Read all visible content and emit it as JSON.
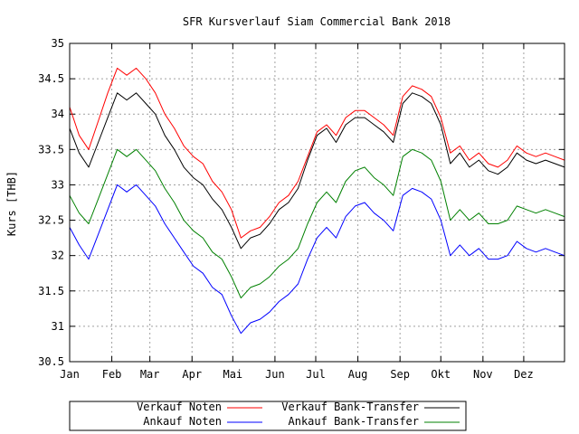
{
  "chart_data": {
    "type": "line",
    "title": "SFR Kursverlauf Siam Commercial Bank 2018",
    "xlabel": "",
    "ylabel": "Kurs [THB]",
    "ylim": [
      30.5,
      35
    ],
    "xlim": [
      "2018-01-01",
      "2018-12-31"
    ],
    "grid": true,
    "legend_position": "bottom",
    "x_ticks": [
      {
        "label": "Jan",
        "date": "2018-01-01"
      },
      {
        "label": "Feb",
        "date": "2018-02-01"
      },
      {
        "label": "Mar",
        "date": "2018-03-01"
      },
      {
        "label": "Apr",
        "date": "2018-04-01"
      },
      {
        "label": "Mai",
        "date": "2018-05-01"
      },
      {
        "label": "Jun",
        "date": "2018-06-01"
      },
      {
        "label": "Jul",
        "date": "2018-07-01"
      },
      {
        "label": "Aug",
        "date": "2018-08-01"
      },
      {
        "label": "Sep",
        "date": "2018-09-01"
      },
      {
        "label": "Okt",
        "date": "2018-10-01"
      },
      {
        "label": "Nov",
        "date": "2018-11-01"
      },
      {
        "label": "Dez",
        "date": "2018-12-01"
      }
    ],
    "y_ticks": [
      "30.5",
      "31",
      "31.5",
      "32",
      "32.5",
      "33",
      "33.5",
      "34",
      "34.5",
      "35"
    ],
    "series": [
      {
        "name": "Verkauf Noten",
        "color": "#ff0000",
        "points": [
          [
            "2018-01-01",
            34.1
          ],
          [
            "2018-01-08",
            33.7
          ],
          [
            "2018-01-15",
            33.5
          ],
          [
            "2018-01-22",
            33.9
          ],
          [
            "2018-01-29",
            34.3
          ],
          [
            "2018-02-05",
            34.65
          ],
          [
            "2018-02-12",
            34.55
          ],
          [
            "2018-02-19",
            34.65
          ],
          [
            "2018-02-26",
            34.5
          ],
          [
            "2018-03-05",
            34.3
          ],
          [
            "2018-03-12",
            34.0
          ],
          [
            "2018-03-19",
            33.8
          ],
          [
            "2018-03-26",
            33.55
          ],
          [
            "2018-04-02",
            33.4
          ],
          [
            "2018-04-09",
            33.3
          ],
          [
            "2018-04-16",
            33.05
          ],
          [
            "2018-04-23",
            32.9
          ],
          [
            "2018-04-30",
            32.65
          ],
          [
            "2018-05-07",
            32.25
          ],
          [
            "2018-05-14",
            32.35
          ],
          [
            "2018-05-21",
            32.4
          ],
          [
            "2018-05-28",
            32.55
          ],
          [
            "2018-06-04",
            32.75
          ],
          [
            "2018-06-11",
            32.85
          ],
          [
            "2018-06-18",
            33.05
          ],
          [
            "2018-06-25",
            33.4
          ],
          [
            "2018-07-02",
            33.75
          ],
          [
            "2018-07-09",
            33.85
          ],
          [
            "2018-07-16",
            33.7
          ],
          [
            "2018-07-23",
            33.95
          ],
          [
            "2018-07-30",
            34.05
          ],
          [
            "2018-08-06",
            34.05
          ],
          [
            "2018-08-13",
            33.95
          ],
          [
            "2018-08-20",
            33.85
          ],
          [
            "2018-08-27",
            33.7
          ],
          [
            "2018-09-03",
            34.25
          ],
          [
            "2018-09-10",
            34.4
          ],
          [
            "2018-09-17",
            34.35
          ],
          [
            "2018-09-24",
            34.25
          ],
          [
            "2018-10-01",
            33.95
          ],
          [
            "2018-10-08",
            33.45
          ],
          [
            "2018-10-15",
            33.55
          ],
          [
            "2018-10-22",
            33.35
          ],
          [
            "2018-10-29",
            33.45
          ],
          [
            "2018-11-05",
            33.3
          ],
          [
            "2018-11-12",
            33.25
          ],
          [
            "2018-11-19",
            33.35
          ],
          [
            "2018-11-26",
            33.55
          ],
          [
            "2018-12-03",
            33.45
          ],
          [
            "2018-12-10",
            33.4
          ],
          [
            "2018-12-17",
            33.45
          ],
          [
            "2018-12-24",
            33.4
          ],
          [
            "2018-12-31",
            33.35
          ]
        ]
      },
      {
        "name": "Verkauf Bank-Transfer",
        "color": "#000000",
        "points": [
          [
            "2018-01-01",
            33.8
          ],
          [
            "2018-01-08",
            33.45
          ],
          [
            "2018-01-15",
            33.25
          ],
          [
            "2018-01-22",
            33.6
          ],
          [
            "2018-01-29",
            33.95
          ],
          [
            "2018-02-05",
            34.3
          ],
          [
            "2018-02-12",
            34.2
          ],
          [
            "2018-02-19",
            34.3
          ],
          [
            "2018-02-26",
            34.15
          ],
          [
            "2018-03-05",
            34.0
          ],
          [
            "2018-03-12",
            33.7
          ],
          [
            "2018-03-19",
            33.5
          ],
          [
            "2018-03-26",
            33.25
          ],
          [
            "2018-04-02",
            33.1
          ],
          [
            "2018-04-09",
            33.0
          ],
          [
            "2018-04-16",
            32.8
          ],
          [
            "2018-04-23",
            32.65
          ],
          [
            "2018-04-30",
            32.4
          ],
          [
            "2018-05-07",
            32.1
          ],
          [
            "2018-05-14",
            32.25
          ],
          [
            "2018-05-21",
            32.3
          ],
          [
            "2018-05-28",
            32.45
          ],
          [
            "2018-06-04",
            32.65
          ],
          [
            "2018-06-11",
            32.75
          ],
          [
            "2018-06-18",
            32.95
          ],
          [
            "2018-06-25",
            33.35
          ],
          [
            "2018-07-02",
            33.7
          ],
          [
            "2018-07-09",
            33.8
          ],
          [
            "2018-07-16",
            33.6
          ],
          [
            "2018-07-23",
            33.85
          ],
          [
            "2018-07-30",
            33.95
          ],
          [
            "2018-08-06",
            33.95
          ],
          [
            "2018-08-13",
            33.85
          ],
          [
            "2018-08-20",
            33.75
          ],
          [
            "2018-08-27",
            33.6
          ],
          [
            "2018-09-03",
            34.15
          ],
          [
            "2018-09-10",
            34.3
          ],
          [
            "2018-09-17",
            34.25
          ],
          [
            "2018-09-24",
            34.15
          ],
          [
            "2018-10-01",
            33.85
          ],
          [
            "2018-10-08",
            33.3
          ],
          [
            "2018-10-15",
            33.45
          ],
          [
            "2018-10-22",
            33.25
          ],
          [
            "2018-10-29",
            33.35
          ],
          [
            "2018-11-05",
            33.2
          ],
          [
            "2018-11-12",
            33.15
          ],
          [
            "2018-11-19",
            33.25
          ],
          [
            "2018-11-26",
            33.45
          ],
          [
            "2018-12-03",
            33.35
          ],
          [
            "2018-12-10",
            33.3
          ],
          [
            "2018-12-17",
            33.35
          ],
          [
            "2018-12-24",
            33.3
          ],
          [
            "2018-12-31",
            33.25
          ]
        ]
      },
      {
        "name": "Ankauf Noten",
        "color": "#0000ff",
        "points": [
          [
            "2018-01-01",
            32.4
          ],
          [
            "2018-01-08",
            32.15
          ],
          [
            "2018-01-15",
            31.95
          ],
          [
            "2018-01-22",
            32.3
          ],
          [
            "2018-01-29",
            32.65
          ],
          [
            "2018-02-05",
            33.0
          ],
          [
            "2018-02-12",
            32.9
          ],
          [
            "2018-02-19",
            33.0
          ],
          [
            "2018-02-26",
            32.85
          ],
          [
            "2018-03-05",
            32.7
          ],
          [
            "2018-03-12",
            32.45
          ],
          [
            "2018-03-19",
            32.25
          ],
          [
            "2018-03-26",
            32.05
          ],
          [
            "2018-04-02",
            31.85
          ],
          [
            "2018-04-09",
            31.75
          ],
          [
            "2018-04-16",
            31.55
          ],
          [
            "2018-04-23",
            31.45
          ],
          [
            "2018-04-30",
            31.15
          ],
          [
            "2018-05-07",
            30.9
          ],
          [
            "2018-05-14",
            31.05
          ],
          [
            "2018-05-21",
            31.1
          ],
          [
            "2018-05-28",
            31.2
          ],
          [
            "2018-06-04",
            31.35
          ],
          [
            "2018-06-11",
            31.45
          ],
          [
            "2018-06-18",
            31.6
          ],
          [
            "2018-06-25",
            31.95
          ],
          [
            "2018-07-02",
            32.25
          ],
          [
            "2018-07-09",
            32.4
          ],
          [
            "2018-07-16",
            32.25
          ],
          [
            "2018-07-23",
            32.55
          ],
          [
            "2018-07-30",
            32.7
          ],
          [
            "2018-08-06",
            32.75
          ],
          [
            "2018-08-13",
            32.6
          ],
          [
            "2018-08-20",
            32.5
          ],
          [
            "2018-08-27",
            32.35
          ],
          [
            "2018-09-03",
            32.85
          ],
          [
            "2018-09-10",
            32.95
          ],
          [
            "2018-09-17",
            32.9
          ],
          [
            "2018-09-24",
            32.8
          ],
          [
            "2018-10-01",
            32.5
          ],
          [
            "2018-10-08",
            32.0
          ],
          [
            "2018-10-15",
            32.15
          ],
          [
            "2018-10-22",
            32.0
          ],
          [
            "2018-10-29",
            32.1
          ],
          [
            "2018-11-05",
            31.95
          ],
          [
            "2018-11-12",
            31.95
          ],
          [
            "2018-11-19",
            32.0
          ],
          [
            "2018-11-26",
            32.2
          ],
          [
            "2018-12-03",
            32.1
          ],
          [
            "2018-12-10",
            32.05
          ],
          [
            "2018-12-17",
            32.1
          ],
          [
            "2018-12-24",
            32.05
          ],
          [
            "2018-12-31",
            32.0
          ]
        ]
      },
      {
        "name": "Ankauf Bank-Transfer",
        "color": "#008000",
        "points": [
          [
            "2018-01-01",
            32.85
          ],
          [
            "2018-01-08",
            32.6
          ],
          [
            "2018-01-15",
            32.45
          ],
          [
            "2018-01-22",
            32.8
          ],
          [
            "2018-01-29",
            33.15
          ],
          [
            "2018-02-05",
            33.5
          ],
          [
            "2018-02-12",
            33.4
          ],
          [
            "2018-02-19",
            33.5
          ],
          [
            "2018-02-26",
            33.35
          ],
          [
            "2018-03-05",
            33.2
          ],
          [
            "2018-03-12",
            32.95
          ],
          [
            "2018-03-19",
            32.75
          ],
          [
            "2018-03-26",
            32.5
          ],
          [
            "2018-04-02",
            32.35
          ],
          [
            "2018-04-09",
            32.25
          ],
          [
            "2018-04-16",
            32.05
          ],
          [
            "2018-04-23",
            31.95
          ],
          [
            "2018-04-30",
            31.7
          ],
          [
            "2018-05-07",
            31.4
          ],
          [
            "2018-05-14",
            31.55
          ],
          [
            "2018-05-21",
            31.6
          ],
          [
            "2018-05-28",
            31.7
          ],
          [
            "2018-06-04",
            31.85
          ],
          [
            "2018-06-11",
            31.95
          ],
          [
            "2018-06-18",
            32.1
          ],
          [
            "2018-06-25",
            32.45
          ],
          [
            "2018-07-02",
            32.75
          ],
          [
            "2018-07-09",
            32.9
          ],
          [
            "2018-07-16",
            32.75
          ],
          [
            "2018-07-23",
            33.05
          ],
          [
            "2018-07-30",
            33.2
          ],
          [
            "2018-08-06",
            33.25
          ],
          [
            "2018-08-13",
            33.1
          ],
          [
            "2018-08-20",
            33.0
          ],
          [
            "2018-08-27",
            32.85
          ],
          [
            "2018-09-03",
            33.4
          ],
          [
            "2018-09-10",
            33.5
          ],
          [
            "2018-09-17",
            33.45
          ],
          [
            "2018-09-24",
            33.35
          ],
          [
            "2018-10-01",
            33.05
          ],
          [
            "2018-10-08",
            32.5
          ],
          [
            "2018-10-15",
            32.65
          ],
          [
            "2018-10-22",
            32.5
          ],
          [
            "2018-10-29",
            32.6
          ],
          [
            "2018-11-05",
            32.45
          ],
          [
            "2018-11-12",
            32.45
          ],
          [
            "2018-11-19",
            32.5
          ],
          [
            "2018-11-26",
            32.7
          ],
          [
            "2018-12-03",
            32.65
          ],
          [
            "2018-12-10",
            32.6
          ],
          [
            "2018-12-17",
            32.65
          ],
          [
            "2018-12-24",
            32.6
          ],
          [
            "2018-12-31",
            32.55
          ]
        ]
      }
    ]
  }
}
